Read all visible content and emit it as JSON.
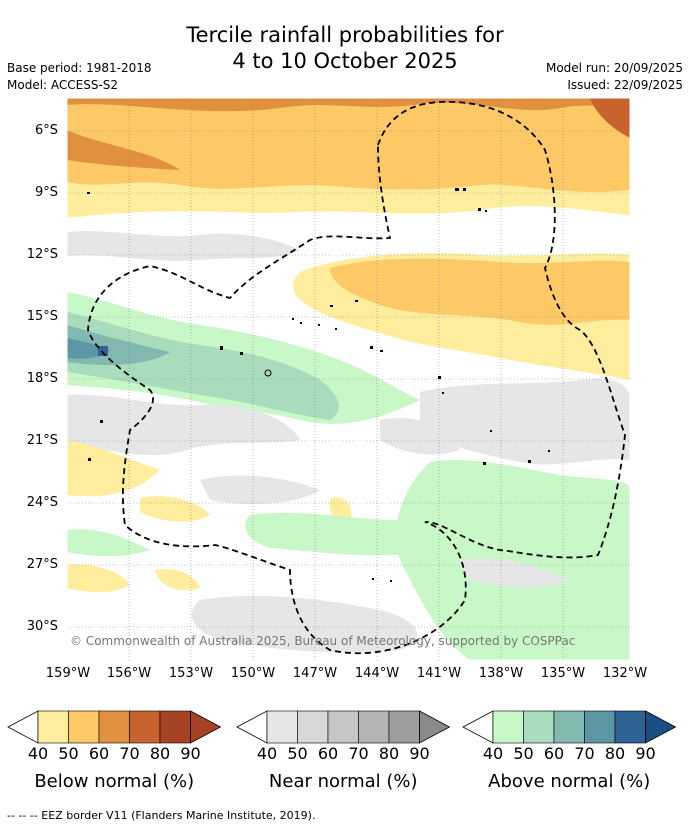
{
  "title_line1": "Tercile rainfall probabilities for",
  "title_line2": "4 to 10 October 2025",
  "base_period": "Base period: 1981-2018",
  "model": "Model: ACCESS-S2",
  "model_run": "Model run: 20/09/2025",
  "issued": "Issued: 22/09/2025",
  "copyright": "© Commonwealth of Australia 2025, Bureau of Meteorology, supported by COSPPac",
  "lat_labels": [
    "6°S",
    "9°S",
    "12°S",
    "15°S",
    "18°S",
    "21°S",
    "24°S",
    "27°S",
    "30°S"
  ],
  "lon_labels": [
    "159°W",
    "156°W",
    "153°W",
    "150°W",
    "147°W",
    "144°W",
    "141°W",
    "138°W",
    "135°W",
    "132°W"
  ],
  "legends": [
    {
      "label": "Below normal (%)",
      "ticks": [
        "40",
        "50",
        "60",
        "70",
        "80",
        "90"
      ],
      "colors": [
        "#ffed9e",
        "#fdc966",
        "#e1903f",
        "#c9632e",
        "#a64325",
        "#a64325"
      ]
    },
    {
      "label": "Near normal (%)",
      "ticks": [
        "40",
        "50",
        "60",
        "70",
        "80",
        "90"
      ],
      "colors": [
        "#e6e6e6",
        "#d7d7d7",
        "#c6c6c6",
        "#b3b3b3",
        "#9e9e9e",
        "#8a8a8a"
      ]
    },
    {
      "label": "Above normal (%)",
      "ticks": [
        "40",
        "50",
        "60",
        "70",
        "80",
        "90"
      ],
      "colors": [
        "#c8f7c8",
        "#a8dcbd",
        "#81b8b0",
        "#5d96a4",
        "#2f6396",
        "#1a4f82"
      ]
    }
  ],
  "footnote": "--  --  -- EEZ border V11 (Flanders Marine Institute, 2019)."
}
